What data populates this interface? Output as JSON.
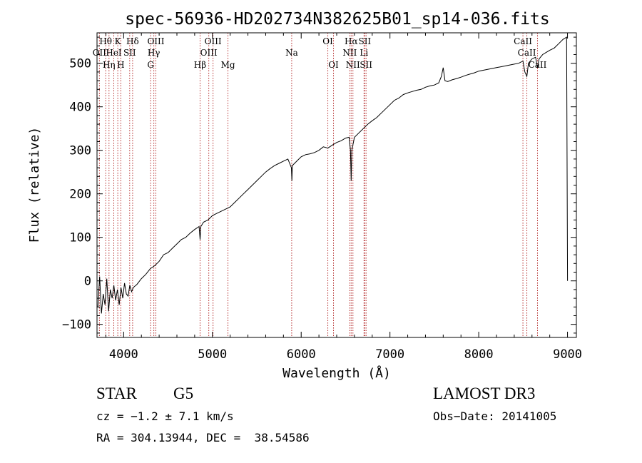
{
  "chart_data": {
    "type": "line",
    "title": "spec-56936-HD202734N382625B01_sp14-036.fits",
    "xlabel": "Wavelength (Å)",
    "ylabel": "Flux (relative)",
    "xlim": [
      3700,
      9100
    ],
    "ylim": [
      -130,
      570
    ],
    "xticks": [
      4000,
      5000,
      6000,
      7000,
      8000,
      9000
    ],
    "xtick_labels": [
      "4000",
      "5000",
      "6000",
      "7000",
      "8000",
      "9000"
    ],
    "yticks": [
      -100,
      0,
      100,
      200,
      300,
      400,
      500
    ],
    "ytick_labels": [
      "−100",
      "0",
      "100",
      "200",
      "300",
      "400",
      "500"
    ],
    "grid": false,
    "line_color": "#000000",
    "marker_color": "#b22222",
    "spectrum": {
      "x": [
        3710,
        3730,
        3750,
        3770,
        3790,
        3810,
        3830,
        3850,
        3870,
        3890,
        3910,
        3930,
        3950,
        3970,
        3990,
        4010,
        4030,
        4050,
        4070,
        4090,
        4110,
        4150,
        4200,
        4250,
        4300,
        4350,
        4400,
        4450,
        4500,
        4550,
        4600,
        4650,
        4700,
        4750,
        4800,
        4850,
        4861,
        4870,
        4900,
        4950,
        5000,
        5050,
        5100,
        5150,
        5200,
        5250,
        5300,
        5350,
        5400,
        5450,
        5500,
        5550,
        5600,
        5650,
        5700,
        5750,
        5800,
        5850,
        5890,
        5895,
        5900,
        5950,
        6000,
        6050,
        6100,
        6150,
        6200,
        6250,
        6300,
        6350,
        6400,
        6450,
        6500,
        6540,
        6555,
        6563,
        6570,
        6600,
        6650,
        6700,
        6750,
        6800,
        6850,
        6900,
        6950,
        7000,
        7050,
        7100,
        7150,
        7200,
        7250,
        7300,
        7350,
        7400,
        7450,
        7500,
        7550,
        7580,
        7600,
        7620,
        7650,
        7700,
        7750,
        7800,
        7850,
        7900,
        7950,
        8000,
        8050,
        8100,
        8150,
        8200,
        8250,
        8300,
        8350,
        8400,
        8450,
        8498,
        8520,
        8542,
        8560,
        8600,
        8640,
        8662,
        8680,
        8720,
        8760,
        8800,
        8850,
        8900,
        8950,
        8990,
        9000
      ],
      "y": [
        -60,
        10,
        -75,
        -30,
        -55,
        5,
        -70,
        -20,
        -40,
        -10,
        -45,
        -20,
        -55,
        -15,
        -40,
        -5,
        -30,
        -35,
        -10,
        -25,
        -15,
        -8,
        5,
        15,
        28,
        35,
        45,
        60,
        65,
        75,
        85,
        95,
        100,
        110,
        118,
        125,
        95,
        125,
        135,
        140,
        150,
        155,
        160,
        165,
        170,
        180,
        190,
        200,
        210,
        220,
        230,
        240,
        250,
        258,
        265,
        270,
        275,
        280,
        260,
        230,
        265,
        275,
        285,
        290,
        292,
        295,
        300,
        308,
        305,
        312,
        318,
        322,
        328,
        330,
        300,
        230,
        300,
        330,
        340,
        350,
        360,
        368,
        375,
        385,
        395,
        405,
        415,
        420,
        428,
        432,
        435,
        438,
        440,
        445,
        448,
        450,
        455,
        470,
        490,
        460,
        458,
        462,
        465,
        468,
        472,
        475,
        478,
        482,
        484,
        486,
        488,
        490,
        492,
        494,
        496,
        498,
        500,
        505,
        480,
        470,
        500,
        510,
        514,
        490,
        510,
        520,
        525,
        530,
        535,
        545,
        555,
        560,
        0
      ]
    },
    "lines": [
      {
        "label": "Hθ",
        "x": 3798,
        "row": 1
      },
      {
        "label": "OII",
        "x": 3727,
        "row": 2
      },
      {
        "label": "Hη",
        "x": 3835,
        "row": 3
      },
      {
        "label": "K",
        "x": 3934,
        "row": 1
      },
      {
        "label": "HeI",
        "x": 3889,
        "row": 2
      },
      {
        "label": "H",
        "x": 3968,
        "row": 3
      },
      {
        "label": "Hδ",
        "x": 4101,
        "row": 1
      },
      {
        "label": "SII",
        "x": 4068,
        "row": 2
      },
      {
        "label": "OIII",
        "x": 4363,
        "row": 1
      },
      {
        "label": "Hγ",
        "x": 4340,
        "row": 2
      },
      {
        "label": "G",
        "x": 4304,
        "row": 3
      },
      {
        "label": "OIII",
        "x": 5007,
        "row": 1
      },
      {
        "label": "OIII",
        "x": 4959,
        "row": 2
      },
      {
        "label": "Hβ",
        "x": 4861,
        "row": 3
      },
      {
        "label": "Mg",
        "x": 5175,
        "row": 3
      },
      {
        "label": "Na",
        "x": 5893,
        "row": 2
      },
      {
        "label": "OI",
        "x": 6300,
        "row": 1
      },
      {
        "label": "OI",
        "x": 6364,
        "row": 3
      },
      {
        "label": "Hα",
        "x": 6563,
        "row": 1
      },
      {
        "label": "SII",
        "x": 6716,
        "row": 1
      },
      {
        "label": "NII",
        "x": 6548,
        "row": 2
      },
      {
        "label": "Li",
        "x": 6708,
        "row": 2
      },
      {
        "label": "NII",
        "x": 6583,
        "row": 3
      },
      {
        "label": "SII",
        "x": 6731,
        "row": 3
      },
      {
        "label": "CaII",
        "x": 8498,
        "row": 1
      },
      {
        "label": "CaII",
        "x": 8542,
        "row": 2
      },
      {
        "label": "CaII",
        "x": 8662,
        "row": 3
      }
    ]
  },
  "info": {
    "object_class": "STAR",
    "subclass": "G5",
    "survey": "LAMOST DR3",
    "redshift": "cz = −1.2 ± 7.1 km/s",
    "obs_date": "Obs−Date: 20141005",
    "coords": "RA = 304.13944, DEC =  38.54586"
  }
}
